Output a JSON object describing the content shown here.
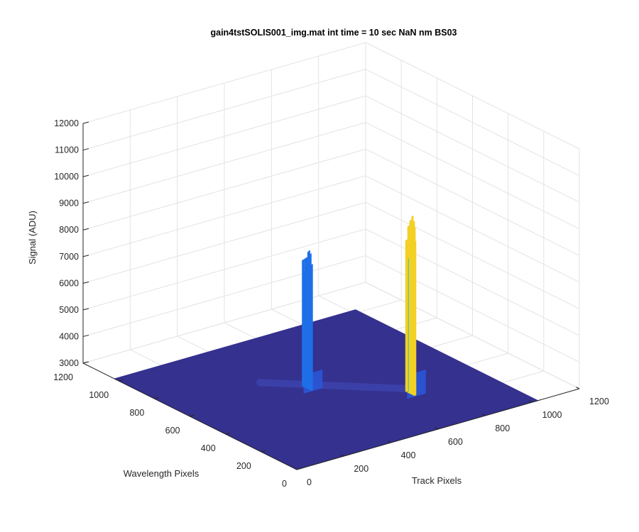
{
  "chart_data": {
    "type": "surface",
    "title": "gain4tstSOLIS001_img.mat int time = 10 sec  NaN nm BS03",
    "xlabel": "Track Pixels",
    "ylabel": "Wavelength Pixels",
    "zlabel": "Signal (ADU)",
    "xlim": [
      0,
      1200
    ],
    "ylim": [
      0,
      1200
    ],
    "zlim": [
      3000,
      12000
    ],
    "xticks": [
      "0",
      "200",
      "400",
      "600",
      "800",
      "1000",
      "1200"
    ],
    "yticks": [
      "0",
      "200",
      "400",
      "600",
      "800",
      "1000",
      "1200"
    ],
    "zticks": [
      "3000",
      "4000",
      "5000",
      "6000",
      "7000",
      "8000",
      "9000",
      "10000",
      "11000",
      "12000"
    ],
    "grid": true,
    "colormap": "parula",
    "baseline_signal": 3000,
    "surface_extent": {
      "x": [
        0,
        1024
      ],
      "y": [
        0,
        1024
      ]
    },
    "peaks": [
      {
        "x": 470,
        "y": 560,
        "peak_signal": 8200,
        "shoulder_signal": 3700,
        "color": "#1f6fe8"
      },
      {
        "x": 720,
        "y": 310,
        "peak_signal": 9700,
        "shoulder_signal": 3900,
        "color": "#21b0d8"
      }
    ],
    "colors": {
      "floor": "#35318f",
      "low": "#2a56d6",
      "mid": "#1d8fe2",
      "high": "#26c3b8",
      "top": "#f2d024"
    }
  }
}
